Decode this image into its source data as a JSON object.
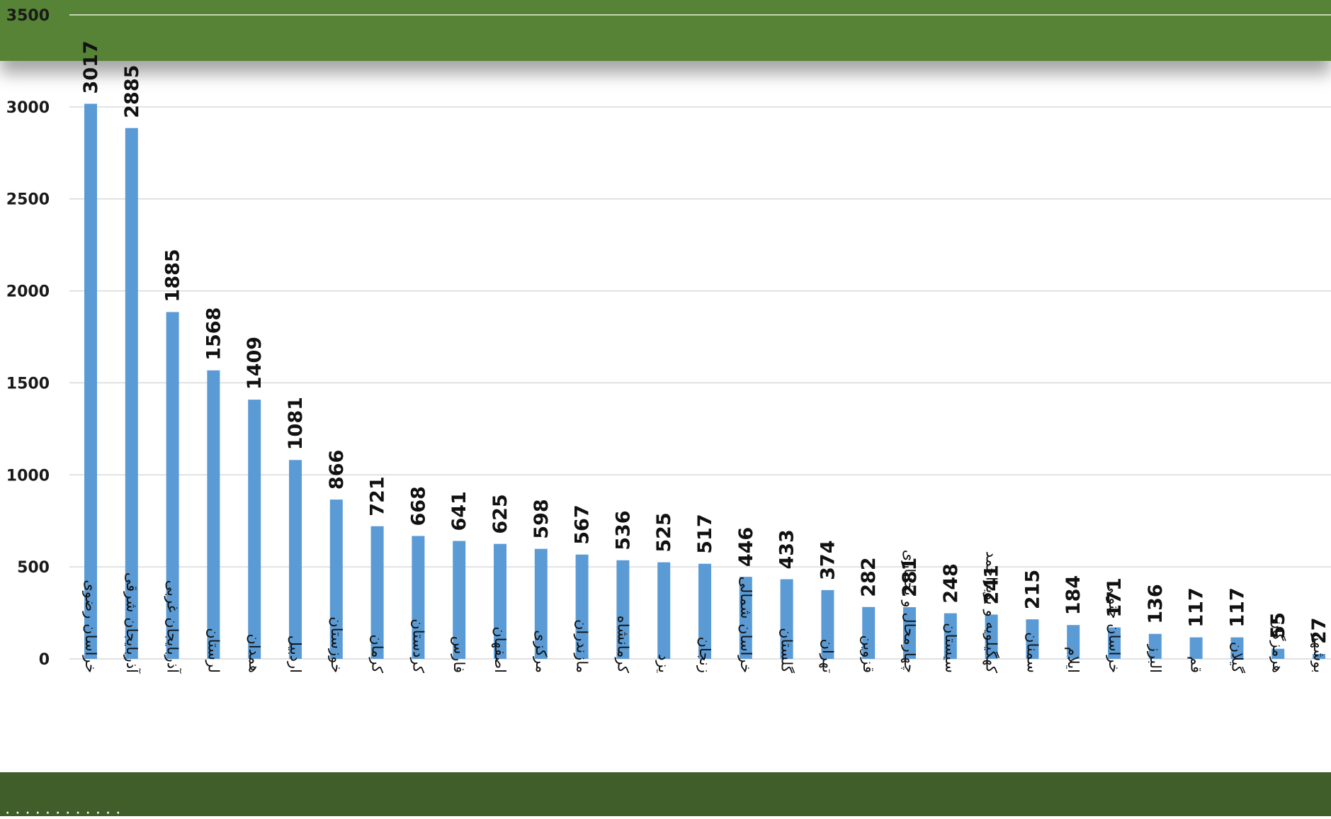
{
  "colors": {
    "band": "#568335",
    "band_dark": "#3f5e2a",
    "bar": "#5b9bd5",
    "grid": "#d9d9d9"
  },
  "chart_data": {
    "type": "bar",
    "categories": [
      "خراسان رضوی",
      "آذربایجان شرقی",
      "آذربایجان غربی",
      "لرستان",
      "همدان",
      "اردبیل",
      "خوزستان",
      "کرمان",
      "کردستان",
      "فارس",
      "اصفهان",
      "مرکزی",
      "مازندران",
      "کرمانشاه",
      "یزد",
      "زنجان",
      "خراسان شمالی",
      "گلستان",
      "تهران",
      "قزوین",
      "چهارمحال و بختیاری",
      "سیستان",
      "کهگیلویه و بویراحمد",
      "سمنان",
      "ایلام",
      "خراسان جنوبی",
      "البرز",
      "قم",
      "گیلان",
      "هرمزگان",
      "بوشهر"
    ],
    "values": [
      3017,
      2885,
      1885,
      1568,
      1409,
      1081,
      866,
      721,
      668,
      641,
      625,
      598,
      567,
      536,
      525,
      517,
      446,
      433,
      374,
      282,
      281,
      248,
      241,
      215,
      184,
      171,
      136,
      117,
      117,
      55,
      27
    ],
    "ylim": [
      0,
      3500
    ],
    "yticks": [
      0,
      500,
      1000,
      1500,
      2000,
      2500,
      3000,
      3500
    ],
    "grid": true,
    "data_labels": true
  }
}
